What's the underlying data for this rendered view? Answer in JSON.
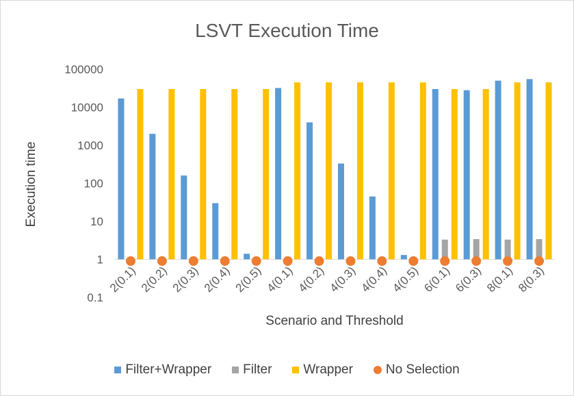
{
  "chart_data": {
    "type": "bar",
    "title": "LSVT Execution Time",
    "xlabel": "Scenario and Threshold",
    "ylabel": "Execution time",
    "y_scale": "log",
    "ylim": [
      0.1,
      100000
    ],
    "y_ticks": [
      "0.1",
      "1",
      "10",
      "100",
      "1000",
      "10000",
      "100000"
    ],
    "categories": [
      "2(0.1)",
      "2(0.2)",
      "2(0.3)",
      "2(0.4)",
      "2(0.5)",
      "4(0.1)",
      "4(0.2)",
      "4(0.3)",
      "4(0.4)",
      "4(0.5)",
      "6(0.1)",
      "6(0.3)",
      "8(0.1)",
      "8(0.3)"
    ],
    "series": [
      {
        "name": "Filter+Wrapper",
        "kind": "bar",
        "color": "#5B9BD5",
        "values": [
          17000,
          2000,
          160,
          30,
          1.4,
          32000,
          4000,
          330,
          45,
          1.3,
          30000,
          28000,
          50000,
          55000
        ]
      },
      {
        "name": "Filter",
        "kind": "bar",
        "color": "#A5A5A5",
        "values": [
          null,
          null,
          null,
          null,
          null,
          null,
          null,
          null,
          null,
          null,
          3.3,
          3.4,
          3.3,
          3.4
        ]
      },
      {
        "name": "Wrapper",
        "kind": "bar",
        "color": "#FFC000",
        "values": [
          30000,
          30000,
          30000,
          30000,
          30000,
          45000,
          45000,
          45000,
          45000,
          45000,
          30000,
          30000,
          45000,
          45000
        ]
      },
      {
        "name": "No Selection",
        "kind": "marker",
        "color": "#ED7D31",
        "values": [
          0.9,
          0.9,
          0.9,
          0.9,
          0.9,
          0.9,
          0.9,
          0.9,
          0.9,
          0.9,
          0.9,
          0.9,
          0.9,
          0.9
        ]
      }
    ],
    "grid": false,
    "legend_position": "bottom"
  }
}
